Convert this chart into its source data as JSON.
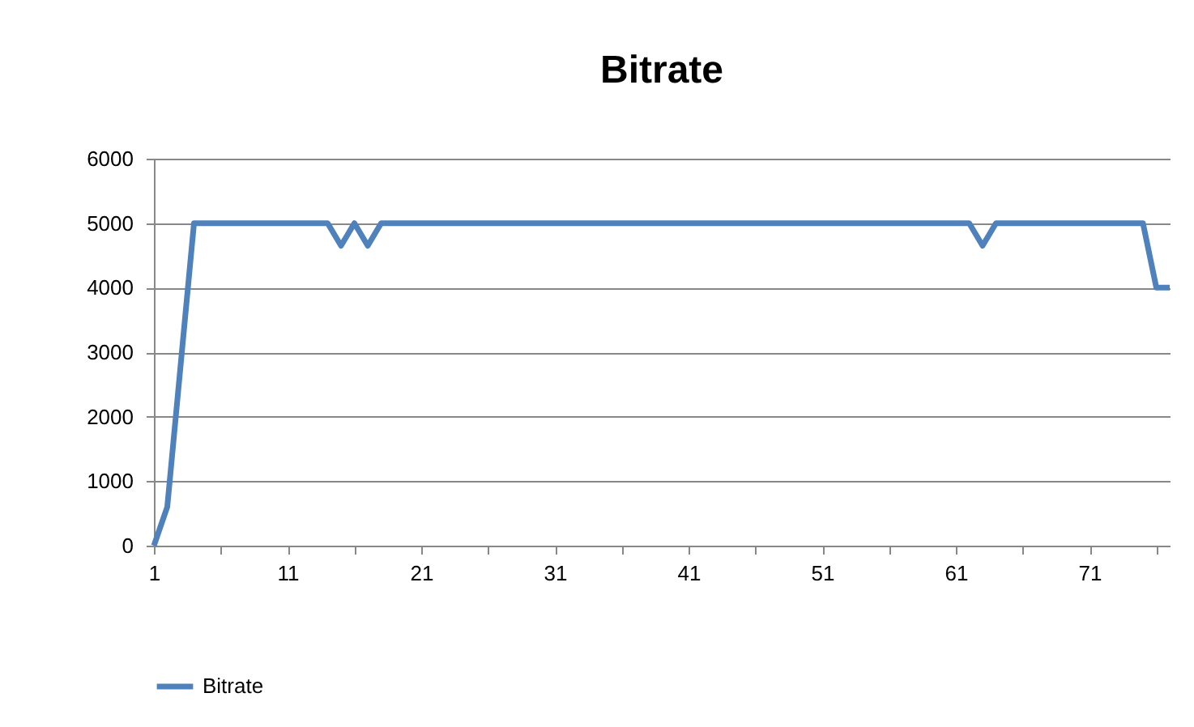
{
  "chart_data": {
    "type": "line",
    "title": "Bitrate",
    "x": [
      1,
      2,
      3,
      4,
      5,
      6,
      7,
      8,
      9,
      10,
      11,
      12,
      13,
      14,
      15,
      16,
      17,
      18,
      19,
      20,
      21,
      22,
      23,
      24,
      25,
      26,
      27,
      28,
      29,
      30,
      31,
      32,
      33,
      34,
      35,
      36,
      37,
      38,
      39,
      40,
      41,
      42,
      43,
      44,
      45,
      46,
      47,
      48,
      49,
      50,
      51,
      52,
      53,
      54,
      55,
      56,
      57,
      58,
      59,
      60,
      61,
      62,
      63,
      64,
      65,
      66,
      67,
      68,
      69,
      70,
      71,
      72,
      73,
      74,
      75,
      76,
      77
    ],
    "series": [
      {
        "name": "Bitrate",
        "color": "#4f81bd",
        "values": [
          0,
          600,
          2800,
          5000,
          5000,
          5000,
          5000,
          5000,
          5000,
          5000,
          5000,
          5000,
          5000,
          5000,
          4650,
          5000,
          4650,
          5000,
          5000,
          5000,
          5000,
          5000,
          5000,
          5000,
          5000,
          5000,
          5000,
          5000,
          5000,
          5000,
          5000,
          5000,
          5000,
          5000,
          5000,
          5000,
          5000,
          5000,
          5000,
          5000,
          5000,
          5000,
          5000,
          5000,
          5000,
          5000,
          5000,
          5000,
          5000,
          5000,
          5000,
          5000,
          5000,
          5000,
          5000,
          5000,
          5000,
          5000,
          5000,
          5000,
          5000,
          5000,
          4650,
          5000,
          5000,
          5000,
          5000,
          5000,
          5000,
          5000,
          5000,
          5000,
          5000,
          5000,
          5000,
          4000,
          4000
        ]
      }
    ],
    "xlim": [
      1,
      77
    ],
    "xticks": [
      1,
      {
        "value": 6,
        "label": null
      },
      11,
      {
        "value": 16,
        "label": null
      },
      21,
      {
        "value": 26,
        "label": null
      },
      31,
      {
        "value": 36,
        "label": null
      },
      41,
      {
        "value": 46,
        "label": null
      },
      51,
      {
        "value": 56,
        "label": null
      },
      61,
      {
        "value": 66,
        "label": null
      },
      71,
      {
        "value": 76,
        "label": null
      }
    ],
    "ylim": [
      0,
      6000
    ],
    "yticks": [
      0,
      1000,
      2000,
      3000,
      4000,
      5000,
      6000
    ],
    "grid": "y",
    "legend": "bottom"
  }
}
